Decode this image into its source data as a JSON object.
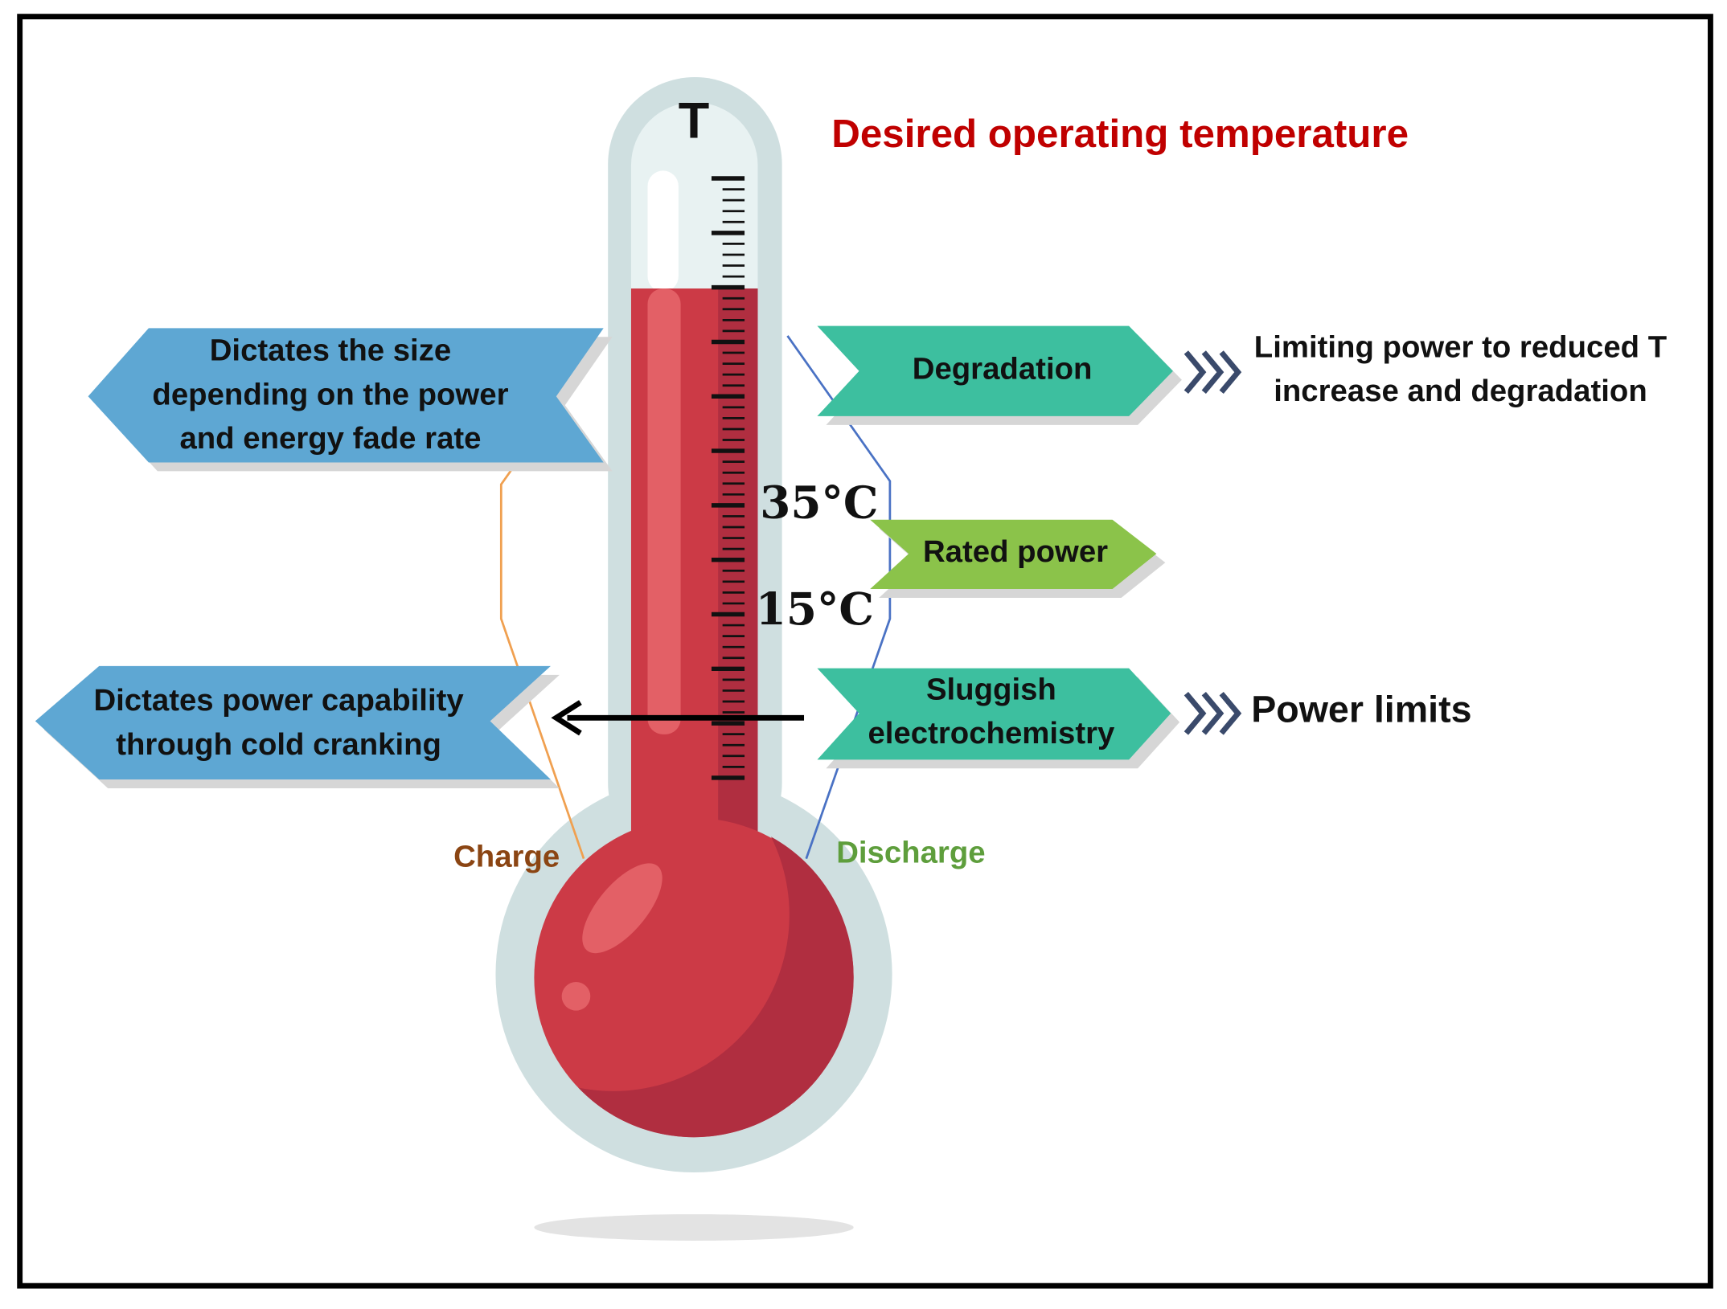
{
  "title": "Desired operating temperature",
  "thermometer": {
    "label": "T",
    "marks": [
      "35°C",
      "15°C"
    ]
  },
  "left_boxes": [
    {
      "lines": [
        "Dictates the size",
        "depending on the power",
        "and energy fade rate"
      ]
    },
    {
      "lines": [
        "Dictates power capability",
        "through cold cranking"
      ]
    }
  ],
  "right_boxes": [
    {
      "lines": [
        "Degradation"
      ]
    },
    {
      "lines": [
        "Rated power"
      ]
    },
    {
      "lines": [
        "Sluggish",
        "electrochemistry"
      ]
    }
  ],
  "notes": [
    {
      "lines": [
        "Limiting power to reduced T",
        "increase and degradation"
      ]
    },
    {
      "lines": [
        "Power limits"
      ]
    }
  ],
  "charge_label": "Charge",
  "discharge_label": "Discharge"
}
